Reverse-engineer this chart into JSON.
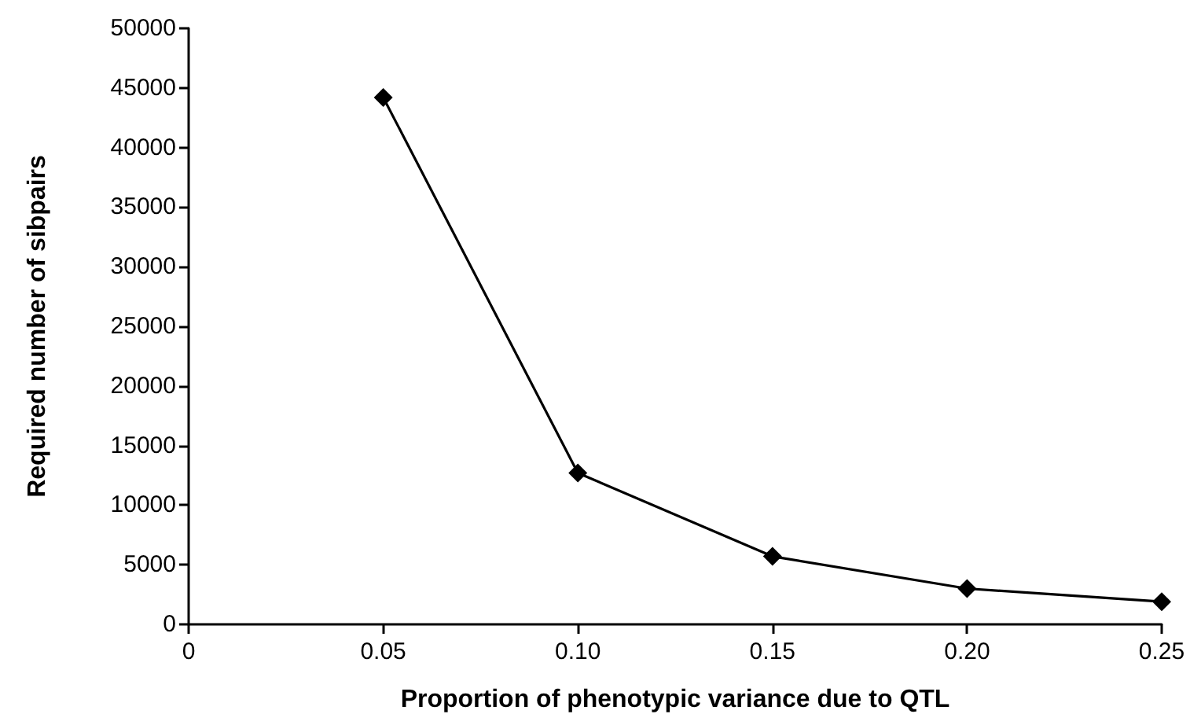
{
  "chart_data": {
    "type": "line",
    "xlabel": "Proportion of phenotypic variance due to QTL",
    "ylabel": "Required number of sibpairs",
    "x": [
      0.05,
      0.1,
      0.15,
      0.2,
      0.25
    ],
    "series": [
      {
        "color": "#000000",
        "values": [
          44200,
          12700,
          5700,
          3000,
          1900
        ]
      }
    ],
    "xlim": [
      0,
      0.25
    ],
    "xticks": [
      0,
      0.05,
      {
        "value": 0.1,
        "label": "0.10"
      },
      0.15,
      {
        "value": 0.2,
        "label": "0.20"
      },
      0.25
    ],
    "ylim": [
      0,
      50000
    ],
    "yticks": [
      0,
      5000,
      10000,
      15000,
      20000,
      25000,
      30000,
      35000,
      40000,
      45000,
      50000
    ],
    "grid": false,
    "marker": "diamond",
    "line_style": "solid"
  }
}
